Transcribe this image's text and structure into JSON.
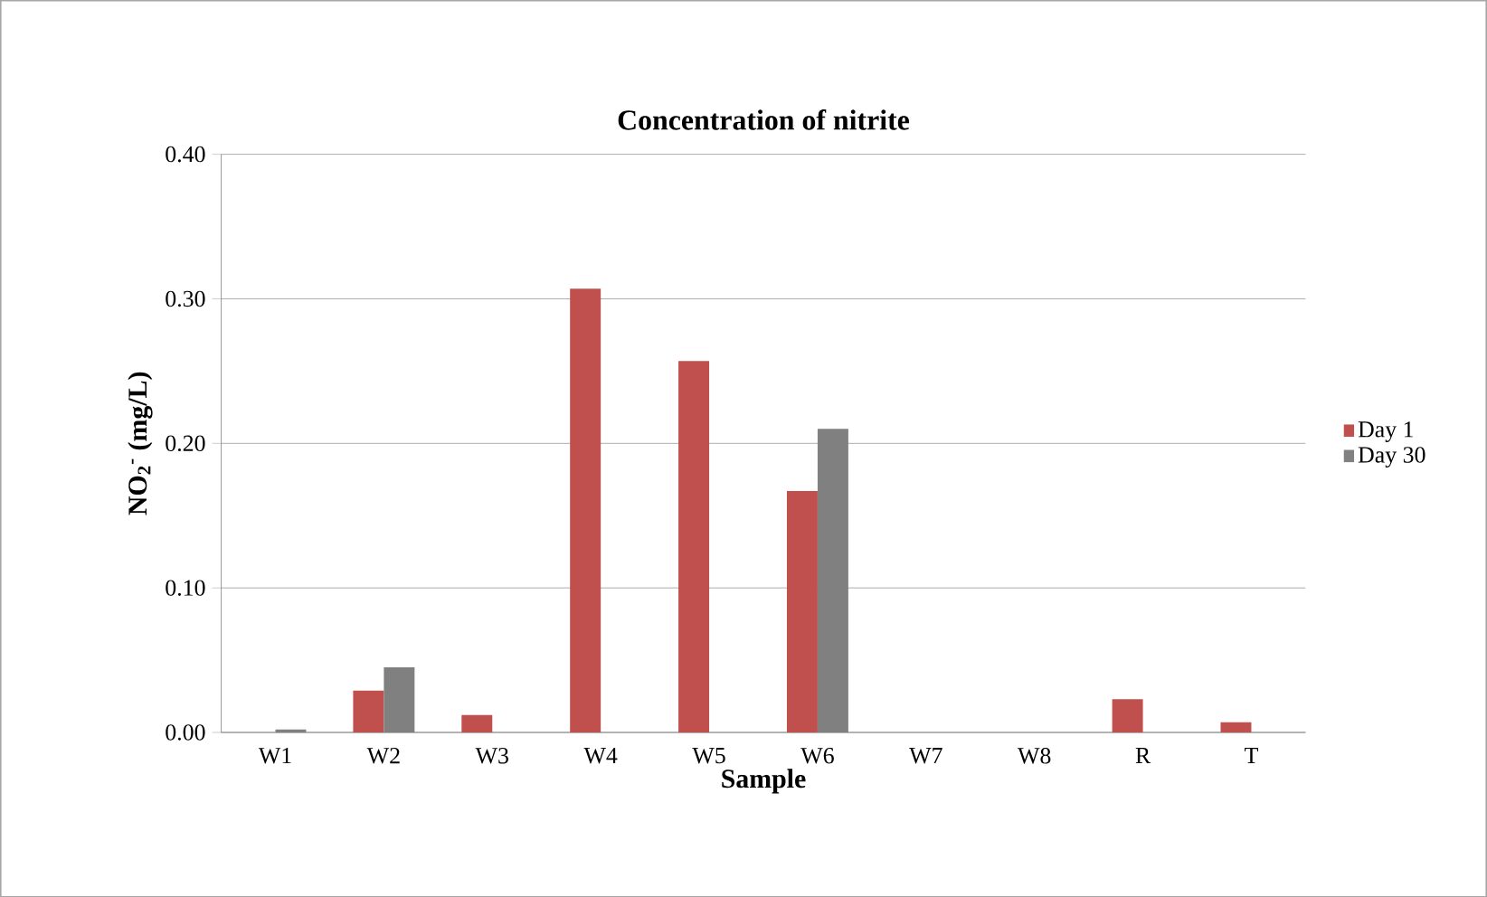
{
  "chart_data": {
    "type": "bar",
    "title": "Concentration  of nitrite",
    "xlabel": "Sample",
    "ylabel": "NO$_{2}$$^{-}$ (mg/L)",
    "categories": [
      "W1",
      "W2",
      "W3",
      "W4",
      "W5",
      "W6",
      "W7",
      "W8",
      "R",
      "T"
    ],
    "series": [
      {
        "name": "Day 1",
        "color": "#c0504d",
        "values": [
          0,
          0.029,
          0.012,
          0.307,
          0.257,
          0.167,
          0,
          0,
          0.023,
          0.007
        ]
      },
      {
        "name": "Day 30",
        "color": "#808080",
        "values": [
          0.002,
          0.045,
          0,
          0,
          0,
          0.21,
          0,
          0,
          0,
          0
        ]
      }
    ],
    "ylim": [
      0,
      0.4
    ],
    "yticks": [
      {
        "value": 0,
        "label": "0.00"
      },
      {
        "value": 0.1,
        "label": "0.10"
      },
      {
        "value": 0.2,
        "label": "0.20"
      },
      {
        "value": 0.3,
        "label": "0.30"
      },
      {
        "value": 0.4,
        "label": "0.40"
      }
    ],
    "grid": "y",
    "legend": "right"
  }
}
